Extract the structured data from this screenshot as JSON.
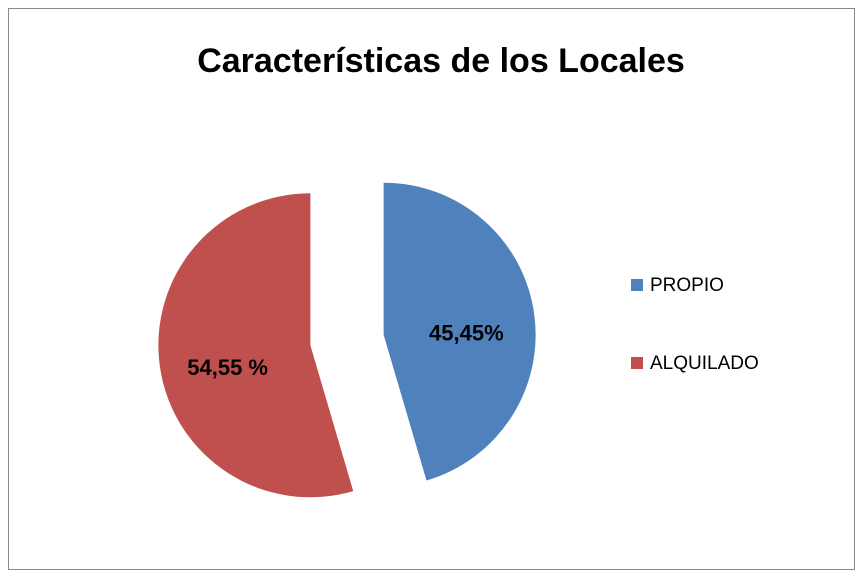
{
  "chart_data": {
    "type": "pie",
    "title": "Características de los Locales",
    "categories": [
      "PROPIO",
      "ALQUILADO"
    ],
    "values": [
      45.45,
      54.55
    ],
    "value_labels": [
      "45,45%",
      "54,55 %"
    ],
    "colors": [
      "#4f81bd",
      "#c0504d"
    ],
    "legend": "right"
  }
}
